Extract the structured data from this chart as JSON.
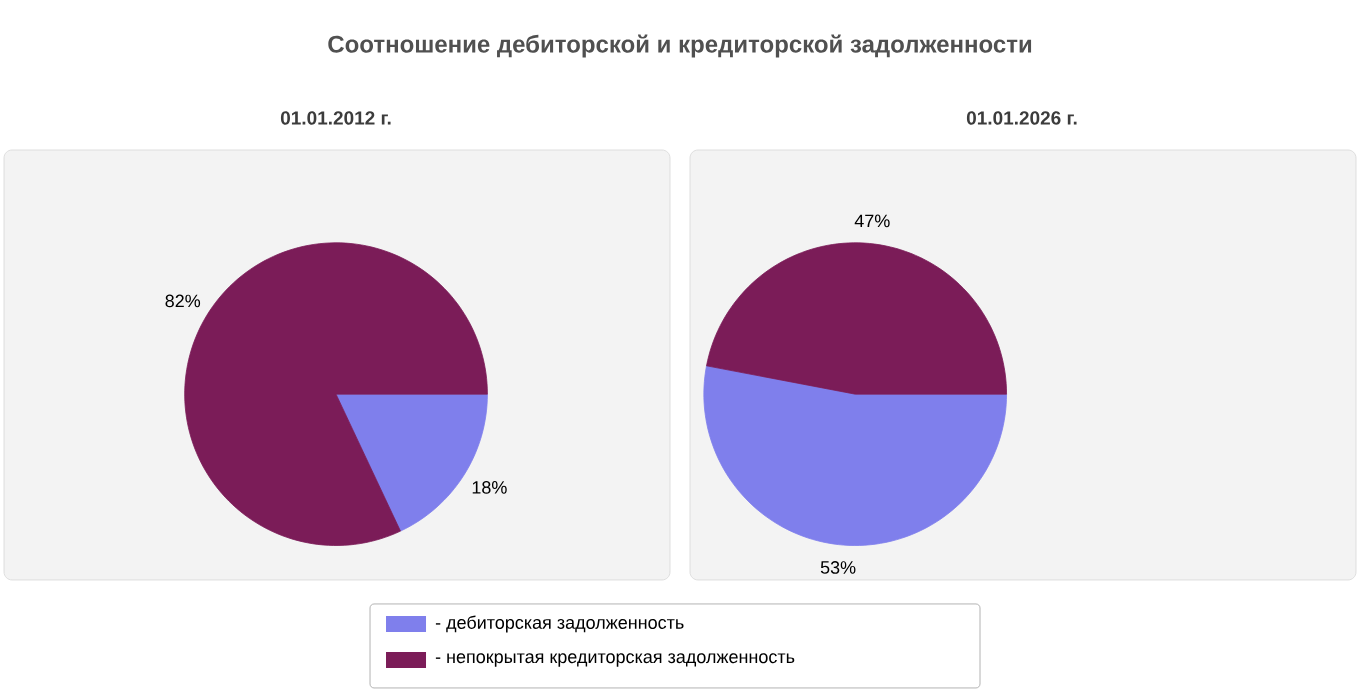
{
  "chart_data": [
    {
      "type": "pie",
      "title": "Соотношение дебиторской и кредиторской задолженности",
      "subtitle": "01.01.2012 г.",
      "categories": [
        "- дебиторская задолженность",
        "- непокрытая кредиторская задолженность"
      ],
      "values": [
        18,
        82
      ],
      "colors": [
        "#7f7fec",
        "#7b1c58"
      ],
      "value_labels": [
        "18%",
        "82%"
      ],
      "legend": "bottom"
    },
    {
      "type": "pie",
      "subtitle": "01.01.2026 г.",
      "categories": [
        null,
        null
      ],
      "values": [
        53,
        47
      ],
      "colors": [
        "#7f7fec",
        "#7b1c58"
      ],
      "value_labels": [
        "53%",
        "47%"
      ]
    }
  ]
}
